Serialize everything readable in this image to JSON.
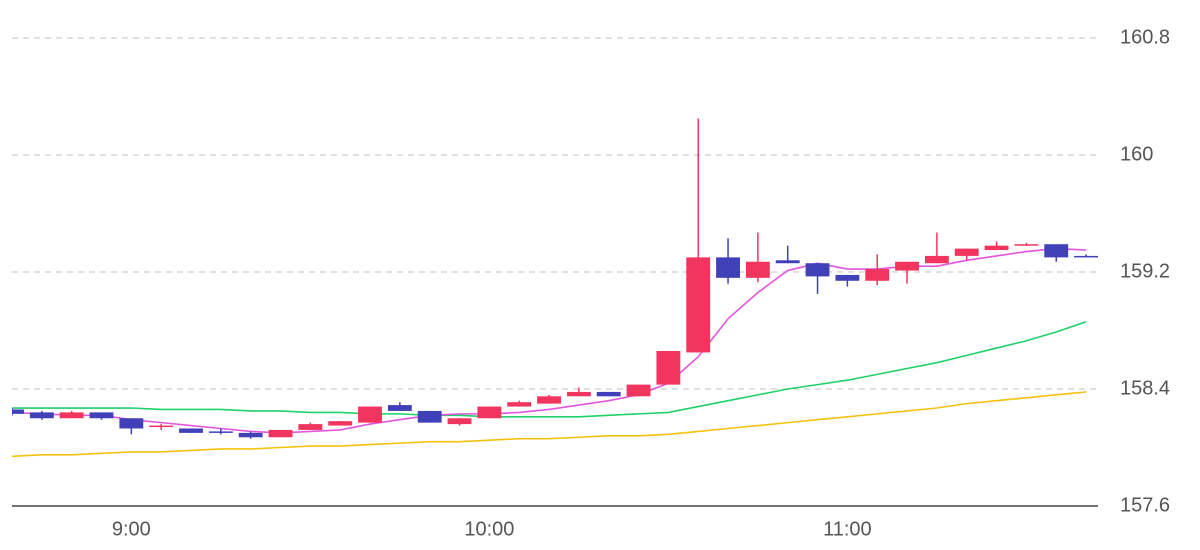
{
  "chart_data": {
    "type": "candlestick",
    "x": [
      520,
      525,
      530,
      535,
      540,
      545,
      550,
      555,
      560,
      565,
      570,
      575,
      580,
      585,
      590,
      595,
      600,
      605,
      610,
      615,
      620,
      625,
      630,
      635,
      640,
      645,
      650,
      655,
      660,
      665,
      670,
      675,
      680,
      685,
      690,
      695,
      700
    ],
    "open": [
      158.26,
      158.24,
      158.2,
      158.24,
      158.2,
      158.14,
      158.13,
      158.11,
      158.1,
      158.07,
      158.12,
      158.15,
      158.17,
      158.29,
      158.25,
      158.16,
      158.2,
      158.28,
      158.3,
      158.35,
      158.38,
      158.35,
      158.43,
      158.65,
      159.3,
      159.16,
      159.28,
      159.26,
      159.18,
      159.14,
      159.21,
      159.26,
      159.31,
      159.35,
      159.38,
      159.39,
      159.31
    ],
    "high": [
      158.27,
      158.25,
      158.25,
      158.24,
      158.2,
      158.16,
      158.13,
      158.13,
      158.11,
      158.12,
      158.17,
      158.18,
      158.28,
      158.31,
      158.25,
      158.2,
      158.28,
      158.32,
      158.36,
      158.41,
      158.38,
      158.43,
      158.66,
      160.25,
      159.43,
      159.47,
      159.38,
      159.26,
      159.18,
      159.32,
      159.27,
      159.47,
      159.36,
      159.41,
      159.4,
      159.39,
      159.32
    ],
    "low": [
      158.22,
      158.19,
      158.2,
      158.19,
      158.09,
      158.12,
      158.1,
      158.09,
      158.06,
      158.07,
      158.12,
      158.15,
      158.17,
      158.25,
      158.17,
      158.15,
      158.2,
      158.28,
      158.3,
      158.35,
      158.35,
      158.35,
      158.43,
      158.65,
      159.12,
      159.13,
      159.26,
      159.05,
      159.1,
      159.11,
      159.12,
      159.26,
      159.28,
      159.35,
      159.38,
      159.27,
      159.3
    ],
    "close": [
      158.23,
      158.2,
      158.24,
      158.2,
      158.13,
      158.15,
      158.1,
      158.1,
      158.07,
      158.12,
      158.16,
      158.18,
      158.28,
      158.25,
      158.17,
      158.2,
      158.28,
      158.31,
      158.35,
      158.38,
      158.35,
      158.43,
      158.66,
      159.3,
      159.16,
      159.27,
      159.26,
      159.17,
      159.14,
      159.22,
      159.27,
      159.31,
      159.36,
      159.38,
      159.39,
      159.3,
      159.3
    ],
    "up_color": "#f2355f",
    "down_color": "#4040b8",
    "series": [
      {
        "color": "#f4c20d",
        "values": [
          157.94,
          157.95,
          157.95,
          157.96,
          157.97,
          157.97,
          157.98,
          157.99,
          157.99,
          158.0,
          158.01,
          158.01,
          158.02,
          158.03,
          158.04,
          158.04,
          158.05,
          158.06,
          158.06,
          158.07,
          158.08,
          158.08,
          158.09,
          158.11,
          158.13,
          158.15,
          158.17,
          158.19,
          158.21,
          158.23,
          158.25,
          158.27,
          158.3,
          158.32,
          158.34,
          158.36,
          158.38
        ]
      },
      {
        "color": "#1fd16b",
        "values": [
          158.27,
          158.27,
          158.27,
          158.27,
          158.27,
          158.26,
          158.26,
          158.26,
          158.25,
          158.25,
          158.24,
          158.24,
          158.23,
          158.23,
          158.22,
          158.22,
          158.21,
          158.21,
          158.21,
          158.21,
          158.22,
          158.23,
          158.24,
          158.28,
          158.32,
          158.36,
          158.4,
          158.43,
          158.46,
          158.5,
          158.54,
          158.58,
          158.63,
          158.68,
          158.73,
          158.79,
          158.86
        ]
      },
      {
        "color": "#e255de",
        "values": [
          158.24,
          158.23,
          158.22,
          158.22,
          158.19,
          158.17,
          158.15,
          158.13,
          158.11,
          158.1,
          158.11,
          158.12,
          158.16,
          158.19,
          158.22,
          158.23,
          158.23,
          158.24,
          158.26,
          158.29,
          158.32,
          158.36,
          158.44,
          158.62,
          158.88,
          159.06,
          159.21,
          159.26,
          159.22,
          159.22,
          159.24,
          159.24,
          159.28,
          159.31,
          159.34,
          159.36,
          159.35
        ]
      }
    ],
    "xlim": [
      520,
      702
    ],
    "xticks": [
      {
        "value": 540,
        "label": "9:00"
      },
      {
        "value": 600,
        "label": "10:00"
      },
      {
        "value": 660,
        "label": "11:00"
      }
    ],
    "ylim": [
      157.6,
      160.8
    ],
    "yticks": [
      157.6,
      158.4,
      159.2,
      160,
      160.8
    ],
    "grid": true
  }
}
